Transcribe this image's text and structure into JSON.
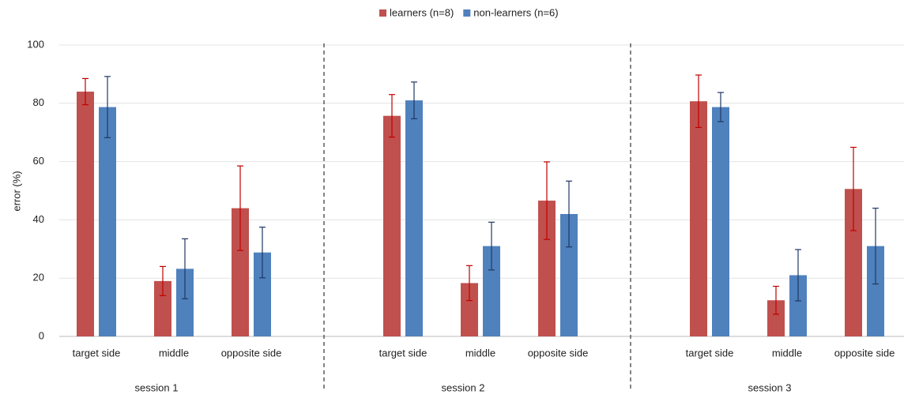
{
  "chart_data": {
    "type": "bar",
    "y_label": "error (%)",
    "categories": [
      "target side",
      "middle",
      "opposite side",
      "target side",
      "middle",
      "opposite side",
      "target side",
      "middle",
      "opposite side"
    ],
    "sessions": [
      "session 1",
      "session 2",
      "session 3"
    ],
    "series": [
      {
        "name": "learners (n=8)",
        "color": "#c0504d",
        "error_color": "#c00000",
        "values": [
          84,
          19,
          44,
          75.7,
          18.3,
          46.6,
          80.7,
          12.4,
          50.6
        ],
        "errors": [
          4.5,
          5,
          14.5,
          7.3,
          6,
          13.3,
          9,
          4.8,
          14.3
        ]
      },
      {
        "name": "non-learners (n=6)",
        "color": "#4f81bd",
        "error_color": "#1f3864",
        "values": [
          78.7,
          23.2,
          28.8,
          81,
          31,
          42,
          78.7,
          21,
          31
        ],
        "errors": [
          10.5,
          10.3,
          8.7,
          6.3,
          8.2,
          11.3,
          5,
          8.8,
          13
        ]
      }
    ],
    "ylim": [
      0,
      100
    ],
    "yticks": [
      0,
      20,
      40,
      60,
      80,
      100
    ],
    "grid": true
  }
}
